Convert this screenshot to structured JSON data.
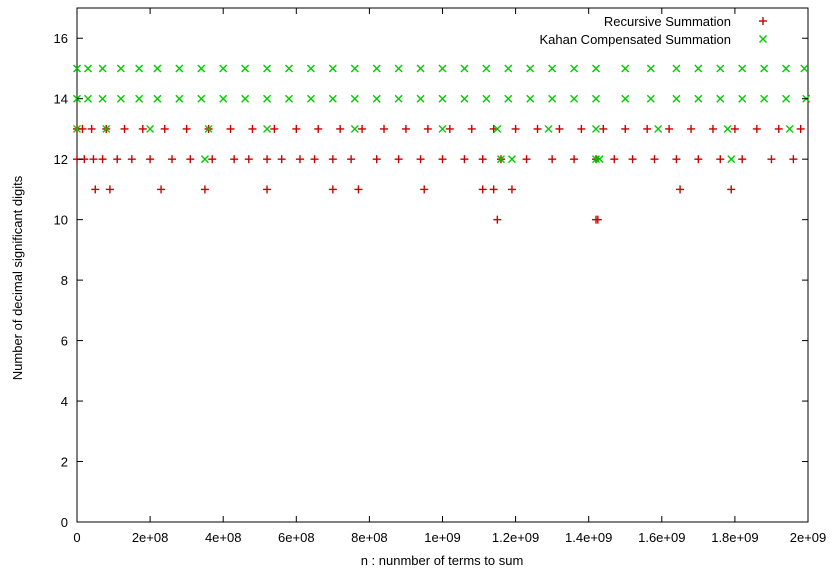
{
  "chart_data": {
    "type": "scatter",
    "title": "",
    "xlabel": "n : nunmber of terms to sum",
    "ylabel": "Number of decimal significant digits",
    "xlim": [
      0,
      2000000000
    ],
    "ylim": [
      0,
      17
    ],
    "x_ticks": [
      0,
      200000000,
      400000000,
      600000000,
      800000000,
      1000000000,
      1200000000,
      1400000000,
      1600000000,
      1800000000,
      2000000000
    ],
    "x_tick_labels": [
      "0",
      "2e+08",
      "4e+08",
      "6e+08",
      "8e+08",
      "1e+09",
      "1.2e+09",
      "1.4e+09",
      "1.6e+09",
      "1.8e+09",
      "2e+09"
    ],
    "y_ticks": [
      0,
      2,
      4,
      6,
      8,
      10,
      12,
      14,
      16
    ],
    "y_tick_labels": [
      "0",
      "2",
      "4",
      "6",
      "8",
      "10",
      "12",
      "14",
      "16"
    ],
    "grid": false,
    "legend_position": "top-right",
    "series": [
      {
        "name": "Recursive Summation",
        "marker": "plus",
        "color": "#cc0000",
        "points": [
          [
            0,
            13
          ],
          [
            15000000,
            13
          ],
          [
            40000000,
            13
          ],
          [
            80000000,
            13
          ],
          [
            130000000,
            13
          ],
          [
            180000000,
            13
          ],
          [
            240000000,
            13
          ],
          [
            300000000,
            13
          ],
          [
            360000000,
            13
          ],
          [
            420000000,
            13
          ],
          [
            480000000,
            13
          ],
          [
            540000000,
            13
          ],
          [
            600000000,
            13
          ],
          [
            660000000,
            13
          ],
          [
            720000000,
            13
          ],
          [
            780000000,
            13
          ],
          [
            840000000,
            13
          ],
          [
            900000000,
            13
          ],
          [
            960000000,
            13
          ],
          [
            1020000000,
            13
          ],
          [
            1080000000,
            13
          ],
          [
            1140000000,
            13
          ],
          [
            1200000000,
            13
          ],
          [
            1260000000,
            13
          ],
          [
            1320000000,
            13
          ],
          [
            1380000000,
            13
          ],
          [
            1440000000,
            13
          ],
          [
            1500000000,
            13
          ],
          [
            1560000000,
            13
          ],
          [
            1620000000,
            13
          ],
          [
            1680000000,
            13
          ],
          [
            1740000000,
            13
          ],
          [
            1800000000,
            13
          ],
          [
            1860000000,
            13
          ],
          [
            1920000000,
            13
          ],
          [
            1980000000,
            13
          ],
          [
            0,
            12
          ],
          [
            20000000,
            12
          ],
          [
            45000000,
            12
          ],
          [
            70000000,
            12
          ],
          [
            110000000,
            12
          ],
          [
            150000000,
            12
          ],
          [
            200000000,
            12
          ],
          [
            260000000,
            12
          ],
          [
            310000000,
            12
          ],
          [
            370000000,
            12
          ],
          [
            430000000,
            12
          ],
          [
            470000000,
            12
          ],
          [
            520000000,
            12
          ],
          [
            560000000,
            12
          ],
          [
            610000000,
            12
          ],
          [
            650000000,
            12
          ],
          [
            700000000,
            12
          ],
          [
            750000000,
            12
          ],
          [
            820000000,
            12
          ],
          [
            880000000,
            12
          ],
          [
            940000000,
            12
          ],
          [
            1000000000,
            12
          ],
          [
            1060000000,
            12
          ],
          [
            1110000000,
            12
          ],
          [
            1160000000,
            12
          ],
          [
            1230000000,
            12
          ],
          [
            1300000000,
            12
          ],
          [
            1360000000,
            12
          ],
          [
            1420000000,
            12
          ],
          [
            1470000000,
            12
          ],
          [
            1520000000,
            12
          ],
          [
            1580000000,
            12
          ],
          [
            1640000000,
            12
          ],
          [
            1700000000,
            12
          ],
          [
            1760000000,
            12
          ],
          [
            1820000000,
            12
          ],
          [
            1900000000,
            12
          ],
          [
            1960000000,
            12
          ],
          [
            50000000,
            11
          ],
          [
            90000000,
            11
          ],
          [
            230000000,
            11
          ],
          [
            350000000,
            11
          ],
          [
            520000000,
            11
          ],
          [
            700000000,
            11
          ],
          [
            770000000,
            11
          ],
          [
            950000000,
            11
          ],
          [
            1110000000,
            11
          ],
          [
            1140000000,
            11
          ],
          [
            1190000000,
            11
          ],
          [
            1650000000,
            11
          ],
          [
            1790000000,
            11
          ],
          [
            1150000000,
            10
          ],
          [
            1420000000,
            10
          ],
          [
            1425000000,
            10
          ]
        ]
      },
      {
        "name": "Kahan Compensated Summation",
        "marker": "cross",
        "color": "#00cc00",
        "points": [
          [
            0,
            15
          ],
          [
            30000000,
            15
          ],
          [
            70000000,
            15
          ],
          [
            120000000,
            15
          ],
          [
            170000000,
            15
          ],
          [
            220000000,
            15
          ],
          [
            280000000,
            15
          ],
          [
            340000000,
            15
          ],
          [
            400000000,
            15
          ],
          [
            460000000,
            15
          ],
          [
            520000000,
            15
          ],
          [
            580000000,
            15
          ],
          [
            640000000,
            15
          ],
          [
            700000000,
            15
          ],
          [
            760000000,
            15
          ],
          [
            820000000,
            15
          ],
          [
            880000000,
            15
          ],
          [
            940000000,
            15
          ],
          [
            1000000000,
            15
          ],
          [
            1060000000,
            15
          ],
          [
            1120000000,
            15
          ],
          [
            1180000000,
            15
          ],
          [
            1240000000,
            15
          ],
          [
            1300000000,
            15
          ],
          [
            1360000000,
            15
          ],
          [
            1420000000,
            15
          ],
          [
            1500000000,
            15
          ],
          [
            1570000000,
            15
          ],
          [
            1640000000,
            15
          ],
          [
            1700000000,
            15
          ],
          [
            1760000000,
            15
          ],
          [
            1820000000,
            15
          ],
          [
            1880000000,
            15
          ],
          [
            1940000000,
            15
          ],
          [
            1990000000,
            15
          ],
          [
            0,
            14
          ],
          [
            30000000,
            14
          ],
          [
            70000000,
            14
          ],
          [
            120000000,
            14
          ],
          [
            170000000,
            14
          ],
          [
            220000000,
            14
          ],
          [
            280000000,
            14
          ],
          [
            340000000,
            14
          ],
          [
            400000000,
            14
          ],
          [
            460000000,
            14
          ],
          [
            520000000,
            14
          ],
          [
            580000000,
            14
          ],
          [
            640000000,
            14
          ],
          [
            700000000,
            14
          ],
          [
            760000000,
            14
          ],
          [
            820000000,
            14
          ],
          [
            880000000,
            14
          ],
          [
            940000000,
            14
          ],
          [
            1000000000,
            14
          ],
          [
            1060000000,
            14
          ],
          [
            1120000000,
            14
          ],
          [
            1180000000,
            14
          ],
          [
            1240000000,
            14
          ],
          [
            1300000000,
            14
          ],
          [
            1360000000,
            14
          ],
          [
            1420000000,
            14
          ],
          [
            1500000000,
            14
          ],
          [
            1570000000,
            14
          ],
          [
            1640000000,
            14
          ],
          [
            1700000000,
            14
          ],
          [
            1760000000,
            14
          ],
          [
            1820000000,
            14
          ],
          [
            1880000000,
            14
          ],
          [
            1940000000,
            14
          ],
          [
            1995000000,
            14
          ],
          [
            0,
            13
          ],
          [
            80000000,
            13
          ],
          [
            200000000,
            13
          ],
          [
            360000000,
            13
          ],
          [
            520000000,
            13
          ],
          [
            760000000,
            13
          ],
          [
            1000000000,
            13
          ],
          [
            1150000000,
            13
          ],
          [
            1290000000,
            13
          ],
          [
            1420000000,
            13
          ],
          [
            1590000000,
            13
          ],
          [
            1780000000,
            13
          ],
          [
            1950000000,
            13
          ],
          [
            350000000,
            12
          ],
          [
            1160000000,
            12
          ],
          [
            1190000000,
            12
          ],
          [
            1420000000,
            12
          ],
          [
            1430000000,
            12
          ],
          [
            1790000000,
            12
          ]
        ]
      }
    ]
  }
}
